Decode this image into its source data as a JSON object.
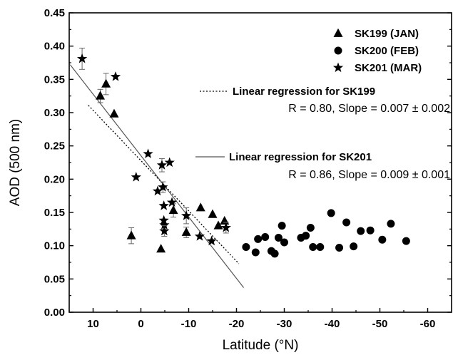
{
  "chart_data": {
    "type": "scatter",
    "xlabel": "Latitude (°N)",
    "ylabel": "AOD (500 nm)",
    "xlim": [
      15,
      -65
    ],
    "ylim": [
      0,
      0.45
    ],
    "xticks": [
      10,
      0,
      -10,
      -20,
      -30,
      -40,
      -50,
      -60
    ],
    "xtick_labels": [
      "10",
      "0",
      "-10",
      "-20",
      "-30",
      "-40",
      "-50",
      "-60"
    ],
    "yticks": [
      0,
      0.05,
      0.1,
      0.15,
      0.2,
      0.25,
      0.3,
      0.35,
      0.4,
      0.45
    ],
    "ytick_labels": [
      "0.00",
      "0.05",
      "0.10",
      "0.15",
      "0.20",
      "0.25",
      "0.30",
      "0.35",
      "0.40",
      "0.45"
    ],
    "grid": false,
    "legend_position": "top-right",
    "series": [
      {
        "name": "SK199 (JAN)",
        "marker": "triangle",
        "points": [
          {
            "x": 8.5,
            "y": 0.325,
            "err": 0.01
          },
          {
            "x": 7.3,
            "y": 0.343,
            "err": 0.016
          },
          {
            "x": 5.6,
            "y": 0.298,
            "err": 0
          },
          {
            "x": 2.0,
            "y": 0.115,
            "err": 0.012
          },
          {
            "x": -4.2,
            "y": 0.095,
            "err": 0
          },
          {
            "x": -6.8,
            "y": 0.153,
            "err": 0.01
          },
          {
            "x": -9.5,
            "y": 0.12,
            "err": 0.008
          },
          {
            "x": -12.5,
            "y": 0.157,
            "err": 0
          },
          {
            "x": -15.0,
            "y": 0.147,
            "err": 0
          },
          {
            "x": -16.2,
            "y": 0.13,
            "err": 0
          },
          {
            "x": -17.5,
            "y": 0.137,
            "err": 0
          }
        ]
      },
      {
        "name": "SK200 (FEB)",
        "marker": "circle",
        "points": [
          {
            "x": -22.0,
            "y": 0.098
          },
          {
            "x": -24.0,
            "y": 0.09
          },
          {
            "x": -24.5,
            "y": 0.11
          },
          {
            "x": -26.0,
            "y": 0.113
          },
          {
            "x": -27.3,
            "y": 0.092
          },
          {
            "x": -28.0,
            "y": 0.088
          },
          {
            "x": -28.8,
            "y": 0.112
          },
          {
            "x": -29.5,
            "y": 0.13
          },
          {
            "x": -30.0,
            "y": 0.105
          },
          {
            "x": -33.5,
            "y": 0.112
          },
          {
            "x": -34.5,
            "y": 0.115
          },
          {
            "x": -35.5,
            "y": 0.127
          },
          {
            "x": -36.0,
            "y": 0.098
          },
          {
            "x": -37.5,
            "y": 0.098
          },
          {
            "x": -39.8,
            "y": 0.149
          },
          {
            "x": -41.5,
            "y": 0.097
          },
          {
            "x": -43.0,
            "y": 0.135
          },
          {
            "x": -44.5,
            "y": 0.099
          },
          {
            "x": -46.0,
            "y": 0.122
          },
          {
            "x": -48.0,
            "y": 0.123
          },
          {
            "x": -50.5,
            "y": 0.109
          },
          {
            "x": -52.3,
            "y": 0.133
          },
          {
            "x": -55.5,
            "y": 0.107
          }
        ]
      },
      {
        "name": "SK201 (MAR)",
        "marker": "star",
        "points": [
          {
            "x": 12.3,
            "y": 0.381,
            "err": 0.016
          },
          {
            "x": 5.3,
            "y": 0.354,
            "err": 0
          },
          {
            "x": 1.0,
            "y": 0.203,
            "err": 0
          },
          {
            "x": -1.5,
            "y": 0.238,
            "err": 0
          },
          {
            "x": -3.5,
            "y": 0.182,
            "err": 0
          },
          {
            "x": -4.4,
            "y": 0.221,
            "err": 0.01
          },
          {
            "x": -4.6,
            "y": 0.188,
            "err": 0.008
          },
          {
            "x": -4.8,
            "y": 0.16,
            "err": 0
          },
          {
            "x": -4.8,
            "y": 0.138,
            "err": 0
          },
          {
            "x": -4.9,
            "y": 0.131,
            "err": 0
          },
          {
            "x": -4.9,
            "y": 0.122,
            "err": 0.008
          },
          {
            "x": -6.0,
            "y": 0.225,
            "err": 0
          },
          {
            "x": -6.5,
            "y": 0.165,
            "err": 0
          },
          {
            "x": -9.5,
            "y": 0.145,
            "err": 0.012
          },
          {
            "x": -12.3,
            "y": 0.114,
            "err": 0
          },
          {
            "x": -14.8,
            "y": 0.107,
            "err": 0
          },
          {
            "x": -17.8,
            "y": 0.127,
            "err": 0.008
          }
        ]
      }
    ],
    "regressions": [
      {
        "name": "Linear regression for SK199",
        "stats": "R = 0.80, Slope = 0.007 ± 0.002",
        "style": "dotted",
        "x": [
          11.0,
          -20.5
        ],
        "y": [
          0.311,
          0.073
        ]
      },
      {
        "name": "Linear regression for SK201",
        "stats": "R = 0.86, Slope = 0.009 ± 0.001",
        "style": "solid",
        "x": [
          14.8,
          -21.5
        ],
        "y": [
          0.372,
          0.037
        ]
      }
    ]
  }
}
